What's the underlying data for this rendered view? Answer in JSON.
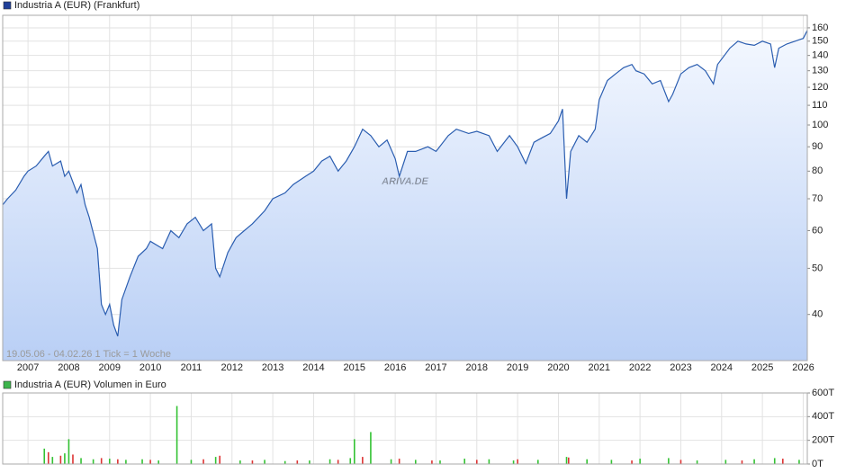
{
  "chart_data": [
    {
      "type": "line",
      "legend": "Industria A (EUR) (Frankfurt)",
      "legend_color": "#1f3f99",
      "annotation": "19.05.06 - 04.02.26    1 Tick = 1 Woche",
      "watermark": "ARIVA.DE",
      "color": "#2a5db0",
      "log_scale": true,
      "grid": true,
      "xlim": [
        2006.38,
        2026.1
      ],
      "xticks": [
        2007,
        2008,
        2009,
        2010,
        2011,
        2012,
        2013,
        2014,
        2015,
        2016,
        2017,
        2018,
        2019,
        2020,
        2021,
        2022,
        2023,
        2024,
        2025,
        2026
      ],
      "ylim": [
        32,
        170
      ],
      "yticks": [
        40,
        50,
        60,
        70,
        80,
        90,
        100,
        110,
        120,
        130,
        140,
        150,
        160
      ],
      "x": [
        2006.38,
        2006.5,
        2006.7,
        2006.9,
        2007.0,
        2007.2,
        2007.4,
        2007.5,
        2007.6,
        2007.8,
        2007.9,
        2008.0,
        2008.2,
        2008.3,
        2008.4,
        2008.5,
        2008.7,
        2008.8,
        2008.9,
        2009.0,
        2009.1,
        2009.2,
        2009.3,
        2009.5,
        2009.7,
        2009.9,
        2010.0,
        2010.3,
        2010.5,
        2010.7,
        2010.9,
        2011.1,
        2011.3,
        2011.5,
        2011.6,
        2011.7,
        2011.9,
        2012.1,
        2012.3,
        2012.5,
        2012.8,
        2013.0,
        2013.3,
        2013.5,
        2013.8,
        2014.0,
        2014.2,
        2014.4,
        2014.6,
        2014.8,
        2015.0,
        2015.2,
        2015.4,
        2015.6,
        2015.8,
        2016.0,
        2016.1,
        2016.3,
        2016.5,
        2016.8,
        2017.0,
        2017.3,
        2017.5,
        2017.8,
        2018.0,
        2018.3,
        2018.5,
        2018.8,
        2019.0,
        2019.2,
        2019.4,
        2019.6,
        2019.8,
        2020.0,
        2020.1,
        2020.2,
        2020.3,
        2020.5,
        2020.7,
        2020.9,
        2021.0,
        2021.2,
        2021.4,
        2021.6,
        2021.8,
        2021.9,
        2022.1,
        2022.3,
        2022.5,
        2022.7,
        2022.8,
        2023.0,
        2023.2,
        2023.4,
        2023.6,
        2023.8,
        2023.9,
        2024.2,
        2024.4,
        2024.6,
        2024.8,
        2025.0,
        2025.2,
        2025.3,
        2025.4,
        2025.6,
        2025.8,
        2026.0,
        2026.1
      ],
      "values": [
        68,
        70,
        73,
        78,
        80,
        82,
        86,
        88,
        82,
        84,
        78,
        80,
        72,
        75,
        68,
        64,
        55,
        42,
        40,
        42,
        38,
        36,
        43,
        48,
        53,
        55,
        57,
        55,
        60,
        58,
        62,
        64,
        60,
        62,
        50,
        48,
        54,
        58,
        60,
        62,
        66,
        70,
        72,
        75,
        78,
        80,
        84,
        86,
        80,
        84,
        90,
        98,
        95,
        90,
        93,
        85,
        78,
        88,
        88,
        90,
        88,
        95,
        98,
        96,
        97,
        95,
        88,
        95,
        90,
        83,
        92,
        94,
        96,
        102,
        108,
        70,
        88,
        95,
        92,
        98,
        113,
        124,
        128,
        132,
        134,
        130,
        128,
        122,
        124,
        112,
        116,
        128,
        132,
        134,
        130,
        122,
        134,
        145,
        150,
        148,
        147,
        150,
        148,
        132,
        145,
        148,
        150,
        152,
        158
      ]
    },
    {
      "type": "bar",
      "legend": "Industria A (EUR) Volumen in Euro",
      "legend_color": "#3cb44b",
      "grid": true,
      "xlim": [
        2006.38,
        2026.1
      ],
      "xticks": [
        2007,
        2008,
        2009,
        2010,
        2011,
        2012,
        2013,
        2014,
        2015,
        2016,
        2017,
        2018,
        2019,
        2020,
        2021,
        2022,
        2023,
        2024,
        2025,
        2026
      ],
      "ylim": [
        0,
        600
      ],
      "yticks": [
        {
          "value": 0,
          "label": "0T"
        },
        {
          "value": 200,
          "label": "200T"
        },
        {
          "value": 400,
          "label": "400T"
        },
        {
          "value": 600,
          "label": "600T"
        }
      ],
      "series": [
        {
          "color": "#33c233",
          "x": [
            2007.4,
            2007.6,
            2007.9,
            2008.0,
            2008.3,
            2008.6,
            2009.0,
            2009.4,
            2009.8,
            2010.2,
            2010.65,
            2011.0,
            2011.6,
            2012.2,
            2012.8,
            2013.3,
            2013.9,
            2014.4,
            2014.9,
            2015.0,
            2015.4,
            2015.9,
            2016.5,
            2017.1,
            2017.7,
            2018.3,
            2018.9,
            2019.5,
            2020.2,
            2020.7,
            2021.3,
            2022.0,
            2022.7,
            2023.4,
            2024.1,
            2024.8,
            2025.3,
            2025.9
          ],
          "values": [
            130,
            60,
            90,
            210,
            50,
            40,
            45,
            35,
            40,
            30,
            490,
            35,
            60,
            30,
            35,
            25,
            30,
            40,
            50,
            210,
            270,
            40,
            35,
            30,
            45,
            40,
            30,
            35,
            60,
            40,
            35,
            45,
            50,
            30,
            35,
            40,
            50,
            35
          ]
        },
        {
          "color": "#dd3333",
          "x": [
            2007.5,
            2007.8,
            2008.1,
            2008.8,
            2009.2,
            2010.0,
            2011.3,
            2011.7,
            2012.5,
            2013.6,
            2014.6,
            2015.2,
            2016.1,
            2016.9,
            2018.0,
            2019.0,
            2020.25,
            2021.8,
            2023.0,
            2024.5,
            2025.5
          ],
          "values": [
            100,
            70,
            80,
            50,
            40,
            35,
            40,
            70,
            30,
            30,
            35,
            60,
            45,
            30,
            35,
            40,
            55,
            30,
            35,
            30,
            45
          ]
        }
      ]
    }
  ]
}
